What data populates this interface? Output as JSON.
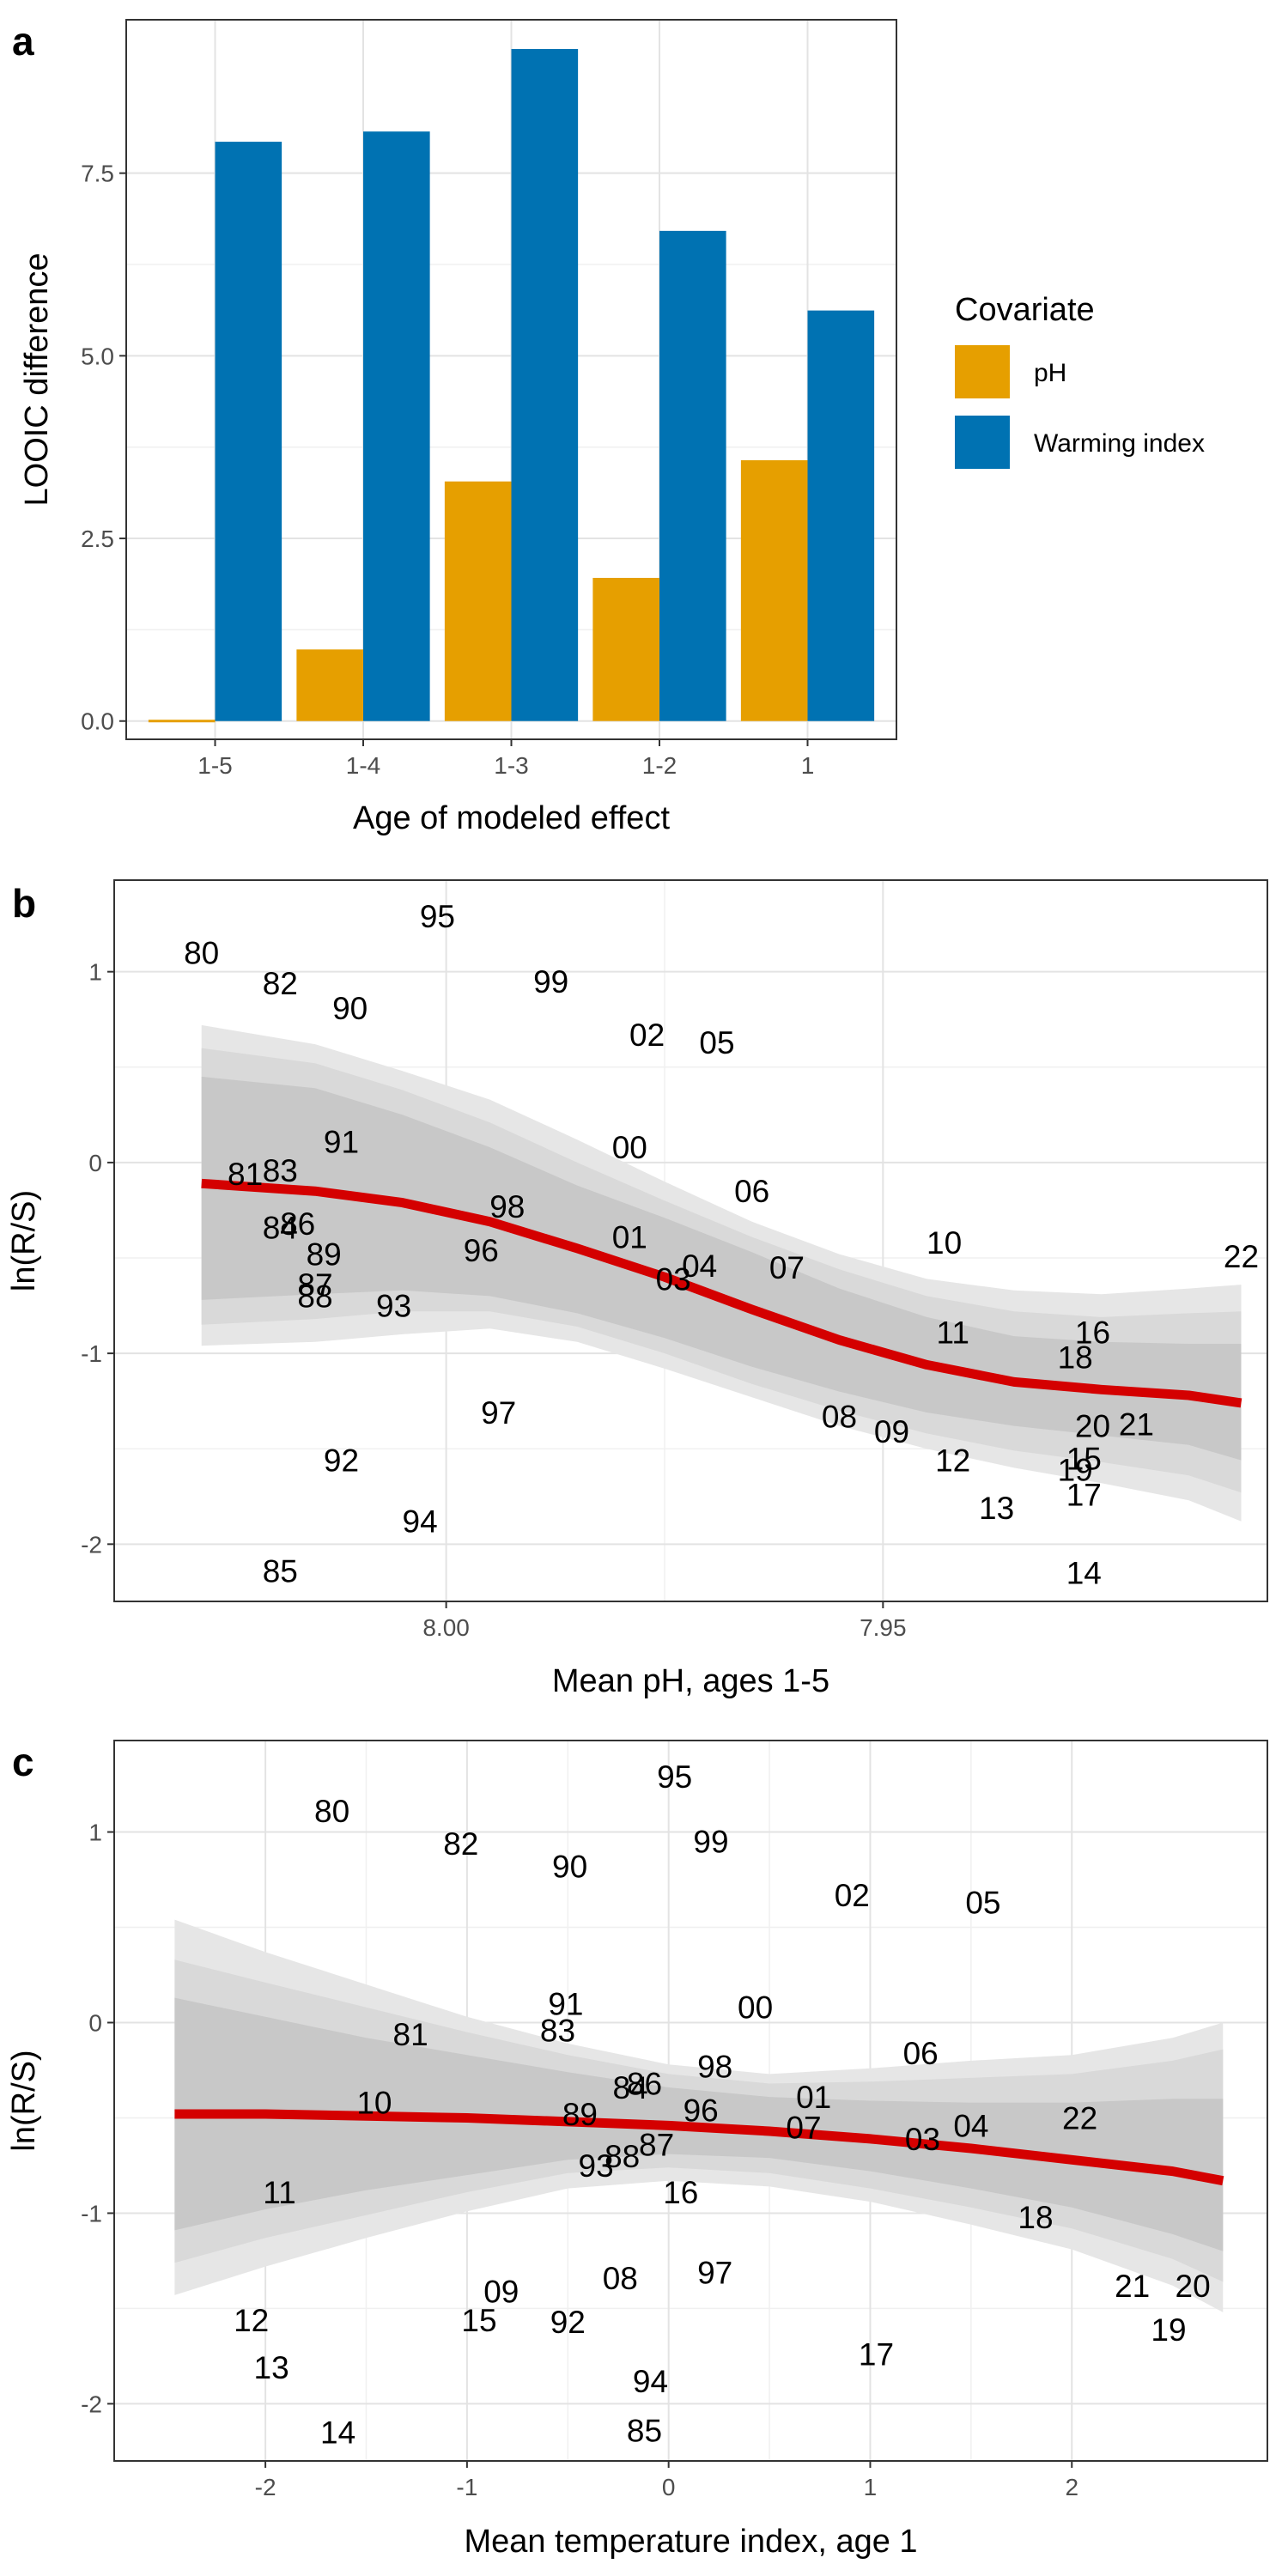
{
  "colors": {
    "ph": "#E69F00",
    "warming": "#0072B2",
    "fit_line": "#D40000",
    "band_outer": "#E6E6E6",
    "band_mid": "#D9D9D9",
    "band_inner": "#C8C8C8"
  },
  "chart_data": [
    {
      "panel": "a",
      "type": "bar",
      "xlabel": "Age of modeled effect",
      "ylabel": "LOOIC difference",
      "categories": [
        "1-5",
        "1-4",
        "1-3",
        "1-2",
        "1"
      ],
      "ylim": [
        -0.25,
        9.6
      ],
      "yticks": [
        0,
        2.5,
        5,
        7.5
      ],
      "ytick_labels": [
        "0.0",
        "2.5",
        "5.0",
        "7.5"
      ],
      "legend_title": "Covariate",
      "legend_position": "right",
      "series": [
        {
          "name": "pH",
          "color": "#E69F00",
          "values": [
            0.0,
            0.98,
            3.28,
            1.96,
            3.57
          ]
        },
        {
          "name": "Warming index",
          "color": "#0072B2",
          "values": [
            7.93,
            8.07,
            9.2,
            6.71,
            5.62
          ]
        }
      ]
    },
    {
      "panel": "b",
      "type": "scatter",
      "xlabel": "Mean pH, ages 1-5",
      "ylabel": "ln(R/S)",
      "x_reversed": true,
      "xlim": [
        8.038,
        7.906
      ],
      "ylim": [
        -2.3,
        1.48
      ],
      "xticks": [
        8.0,
        7.95
      ],
      "xtick_labels": [
        "8.00",
        "7.95"
      ],
      "yticks": [
        -2,
        -1,
        0,
        1
      ],
      "ytick_labels": [
        "-2",
        "-1",
        "0",
        "1"
      ],
      "points": [
        {
          "label": "80",
          "x": 8.028,
          "y": 1.1
        },
        {
          "label": "82",
          "x": 8.019,
          "y": 0.94
        },
        {
          "label": "90",
          "x": 8.011,
          "y": 0.81
        },
        {
          "label": "95",
          "x": 8.001,
          "y": 1.29
        },
        {
          "label": "99",
          "x": 7.988,
          "y": 0.95
        },
        {
          "label": "02",
          "x": 7.977,
          "y": 0.67
        },
        {
          "label": "05",
          "x": 7.969,
          "y": 0.63
        },
        {
          "label": "91",
          "x": 8.012,
          "y": 0.11
        },
        {
          "label": "81",
          "x": 8.023,
          "y": -0.06
        },
        {
          "label": "83",
          "x": 8.019,
          "y": -0.04
        },
        {
          "label": "00",
          "x": 7.979,
          "y": 0.08
        },
        {
          "label": "06",
          "x": 7.965,
          "y": -0.15
        },
        {
          "label": "84",
          "x": 8.019,
          "y": -0.34
        },
        {
          "label": "86",
          "x": 8.017,
          "y": -0.32
        },
        {
          "label": "98",
          "x": 7.993,
          "y": -0.23
        },
        {
          "label": "89",
          "x": 8.014,
          "y": -0.48
        },
        {
          "label": "96",
          "x": 7.996,
          "y": -0.46
        },
        {
          "label": "01",
          "x": 7.979,
          "y": -0.39
        },
        {
          "label": "10",
          "x": 7.943,
          "y": -0.42
        },
        {
          "label": "22",
          "x": 7.909,
          "y": -0.49
        },
        {
          "label": "88",
          "x": 8.015,
          "y": -0.7
        },
        {
          "label": "87",
          "x": 8.015,
          "y": -0.64
        },
        {
          "label": "93",
          "x": 8.006,
          "y": -0.75
        },
        {
          "label": "04",
          "x": 7.971,
          "y": -0.54
        },
        {
          "label": "03",
          "x": 7.974,
          "y": -0.61
        },
        {
          "label": "07",
          "x": 7.961,
          "y": -0.55
        },
        {
          "label": "11",
          "x": 7.942,
          "y": -0.89
        },
        {
          "label": "16",
          "x": 7.926,
          "y": -0.89
        },
        {
          "label": "18",
          "x": 7.928,
          "y": -1.02
        },
        {
          "label": "97",
          "x": 7.994,
          "y": -1.31
        },
        {
          "label": "08",
          "x": 7.955,
          "y": -1.33
        },
        {
          "label": "09",
          "x": 7.949,
          "y": -1.41
        },
        {
          "label": "20",
          "x": 7.926,
          "y": -1.38
        },
        {
          "label": "21",
          "x": 7.921,
          "y": -1.37
        },
        {
          "label": "92",
          "x": 8.012,
          "y": -1.56
        },
        {
          "label": "12",
          "x": 7.942,
          "y": -1.56
        },
        {
          "label": "15",
          "x": 7.927,
          "y": -1.55
        },
        {
          "label": "19",
          "x": 7.928,
          "y": -1.61
        },
        {
          "label": "17",
          "x": 7.927,
          "y": -1.74
        },
        {
          "label": "13",
          "x": 7.937,
          "y": -1.81
        },
        {
          "label": "94",
          "x": 8.003,
          "y": -1.88
        },
        {
          "label": "85",
          "x": 8.019,
          "y": -2.14
        },
        {
          "label": "14",
          "x": 7.927,
          "y": -2.15
        }
      ],
      "fit_line": {
        "x": [
          8.028,
          8.015,
          8.005,
          7.995,
          7.985,
          7.975,
          7.965,
          7.955,
          7.945,
          7.935,
          7.925,
          7.915,
          7.909
        ],
        "y": [
          -0.11,
          -0.15,
          -0.21,
          -0.31,
          -0.45,
          -0.6,
          -0.77,
          -0.93,
          -1.06,
          -1.15,
          -1.19,
          -1.22,
          -1.26
        ]
      },
      "bands": [
        {
          "lower": [
            -0.96,
            -0.94,
            -0.9,
            -0.87,
            -0.94,
            -1.08,
            -1.23,
            -1.38,
            -1.5,
            -1.6,
            -1.68,
            -1.77,
            -1.88
          ],
          "upper": [
            0.72,
            0.62,
            0.48,
            0.33,
            0.12,
            -0.1,
            -0.31,
            -0.48,
            -0.61,
            -0.67,
            -0.69,
            -0.66,
            -0.64
          ]
        },
        {
          "lower": [
            -0.85,
            -0.82,
            -0.78,
            -0.78,
            -0.86,
            -1.0,
            -1.16,
            -1.3,
            -1.42,
            -1.51,
            -1.57,
            -1.64,
            -1.73
          ],
          "upper": [
            0.6,
            0.52,
            0.38,
            0.21,
            0.0,
            -0.2,
            -0.39,
            -0.56,
            -0.7,
            -0.78,
            -0.81,
            -0.79,
            -0.78
          ]
        },
        {
          "lower": [
            -0.72,
            -0.69,
            -0.67,
            -0.7,
            -0.79,
            -0.92,
            -1.07,
            -1.2,
            -1.31,
            -1.38,
            -1.43,
            -1.48,
            -1.56
          ],
          "upper": [
            0.45,
            0.39,
            0.25,
            0.08,
            -0.12,
            -0.29,
            -0.47,
            -0.66,
            -0.81,
            -0.91,
            -0.94,
            -0.95,
            -0.95
          ]
        }
      ]
    },
    {
      "panel": "c",
      "type": "scatter",
      "xlabel": "Mean temperature index, age 1",
      "ylabel": "ln(R/S)",
      "xlim": [
        -2.75,
        2.97
      ],
      "ylim": [
        -2.3,
        1.48
      ],
      "xticks": [
        -2,
        -1,
        0,
        1,
        2
      ],
      "xtick_labels": [
        "-2",
        "-1",
        "0",
        "1",
        "2"
      ],
      "yticks": [
        -2,
        -1,
        0,
        1
      ],
      "ytick_labels": [
        "-2",
        "-1",
        "0",
        "1"
      ],
      "points": [
        {
          "label": "80",
          "x": -1.67,
          "y": 1.11
        },
        {
          "label": "82",
          "x": -1.03,
          "y": 0.94
        },
        {
          "label": "90",
          "x": -0.49,
          "y": 0.82
        },
        {
          "label": "95",
          "x": 0.03,
          "y": 1.29
        },
        {
          "label": "99",
          "x": 0.21,
          "y": 0.95
        },
        {
          "label": "02",
          "x": 0.91,
          "y": 0.67
        },
        {
          "label": "05",
          "x": 1.56,
          "y": 0.63
        },
        {
          "label": "91",
          "x": -0.51,
          "y": 0.1
        },
        {
          "label": "83",
          "x": -0.55,
          "y": -0.04
        },
        {
          "label": "81",
          "x": -1.28,
          "y": -0.06
        },
        {
          "label": "00",
          "x": 0.43,
          "y": 0.08
        },
        {
          "label": "06",
          "x": 1.25,
          "y": -0.16
        },
        {
          "label": "98",
          "x": 0.23,
          "y": -0.23
        },
        {
          "label": "86",
          "x": -0.12,
          "y": -0.32
        },
        {
          "label": "84",
          "x": -0.19,
          "y": -0.34
        },
        {
          "label": "10",
          "x": -1.46,
          "y": -0.42
        },
        {
          "label": "89",
          "x": -0.44,
          "y": -0.48
        },
        {
          "label": "96",
          "x": 0.16,
          "y": -0.46
        },
        {
          "label": "01",
          "x": 0.72,
          "y": -0.39
        },
        {
          "label": "07",
          "x": 0.67,
          "y": -0.55
        },
        {
          "label": "03",
          "x": 1.26,
          "y": -0.61
        },
        {
          "label": "04",
          "x": 1.5,
          "y": -0.54
        },
        {
          "label": "22",
          "x": 2.04,
          "y": -0.5
        },
        {
          "label": "93",
          "x": -0.36,
          "y": -0.75
        },
        {
          "label": "88",
          "x": -0.23,
          "y": -0.7
        },
        {
          "label": "87",
          "x": -0.06,
          "y": -0.64
        },
        {
          "label": "11",
          "x": -1.93,
          "y": -0.89
        },
        {
          "label": "16",
          "x": 0.06,
          "y": -0.89
        },
        {
          "label": "18",
          "x": 1.82,
          "y": -1.02
        },
        {
          "label": "09",
          "x": -0.83,
          "y": -1.41
        },
        {
          "label": "08",
          "x": -0.24,
          "y": -1.34
        },
        {
          "label": "97",
          "x": 0.23,
          "y": -1.31
        },
        {
          "label": "21",
          "x": 2.3,
          "y": -1.38
        },
        {
          "label": "20",
          "x": 2.6,
          "y": -1.38
        },
        {
          "label": "12",
          "x": -2.07,
          "y": -1.56
        },
        {
          "label": "15",
          "x": -0.94,
          "y": -1.56
        },
        {
          "label": "92",
          "x": -0.5,
          "y": -1.57
        },
        {
          "label": "19",
          "x": 2.48,
          "y": -1.61
        },
        {
          "label": "17",
          "x": 1.03,
          "y": -1.74
        },
        {
          "label": "13",
          "x": -1.97,
          "y": -1.81
        },
        {
          "label": "94",
          "x": -0.09,
          "y": -1.88
        },
        {
          "label": "14",
          "x": -1.64,
          "y": -2.15
        },
        {
          "label": "85",
          "x": -0.12,
          "y": -2.14
        }
      ],
      "fit_line": {
        "x": [
          -2.45,
          -2.0,
          -1.5,
          -1.0,
          -0.5,
          0.0,
          0.5,
          1.0,
          1.5,
          2.0,
          2.5,
          2.75
        ],
        "y": [
          -0.48,
          -0.48,
          -0.49,
          -0.5,
          -0.52,
          -0.54,
          -0.57,
          -0.61,
          -0.66,
          -0.72,
          -0.78,
          -0.83
        ]
      },
      "bands": [
        {
          "lower": [
            -1.43,
            -1.28,
            -1.13,
            -0.99,
            -0.87,
            -0.83,
            -0.86,
            -0.94,
            -1.06,
            -1.19,
            -1.38,
            -1.52
          ],
          "upper": [
            0.54,
            0.37,
            0.2,
            0.03,
            -0.11,
            -0.22,
            -0.27,
            -0.24,
            -0.2,
            -0.17,
            -0.08,
            0.0
          ]
        },
        {
          "lower": [
            -1.26,
            -1.13,
            -1.01,
            -0.89,
            -0.79,
            -0.76,
            -0.79,
            -0.87,
            -0.97,
            -1.08,
            -1.24,
            -1.36
          ],
          "upper": [
            0.33,
            0.21,
            0.08,
            -0.05,
            -0.17,
            -0.27,
            -0.32,
            -0.31,
            -0.29,
            -0.27,
            -0.2,
            -0.14
          ]
        },
        {
          "lower": [
            -1.09,
            -0.98,
            -0.88,
            -0.8,
            -0.72,
            -0.69,
            -0.71,
            -0.78,
            -0.87,
            -0.97,
            -1.11,
            -1.2
          ],
          "upper": [
            0.13,
            0.03,
            -0.08,
            -0.17,
            -0.26,
            -0.34,
            -0.39,
            -0.41,
            -0.42,
            -0.42,
            -0.4,
            -0.4
          ]
        }
      ]
    }
  ]
}
